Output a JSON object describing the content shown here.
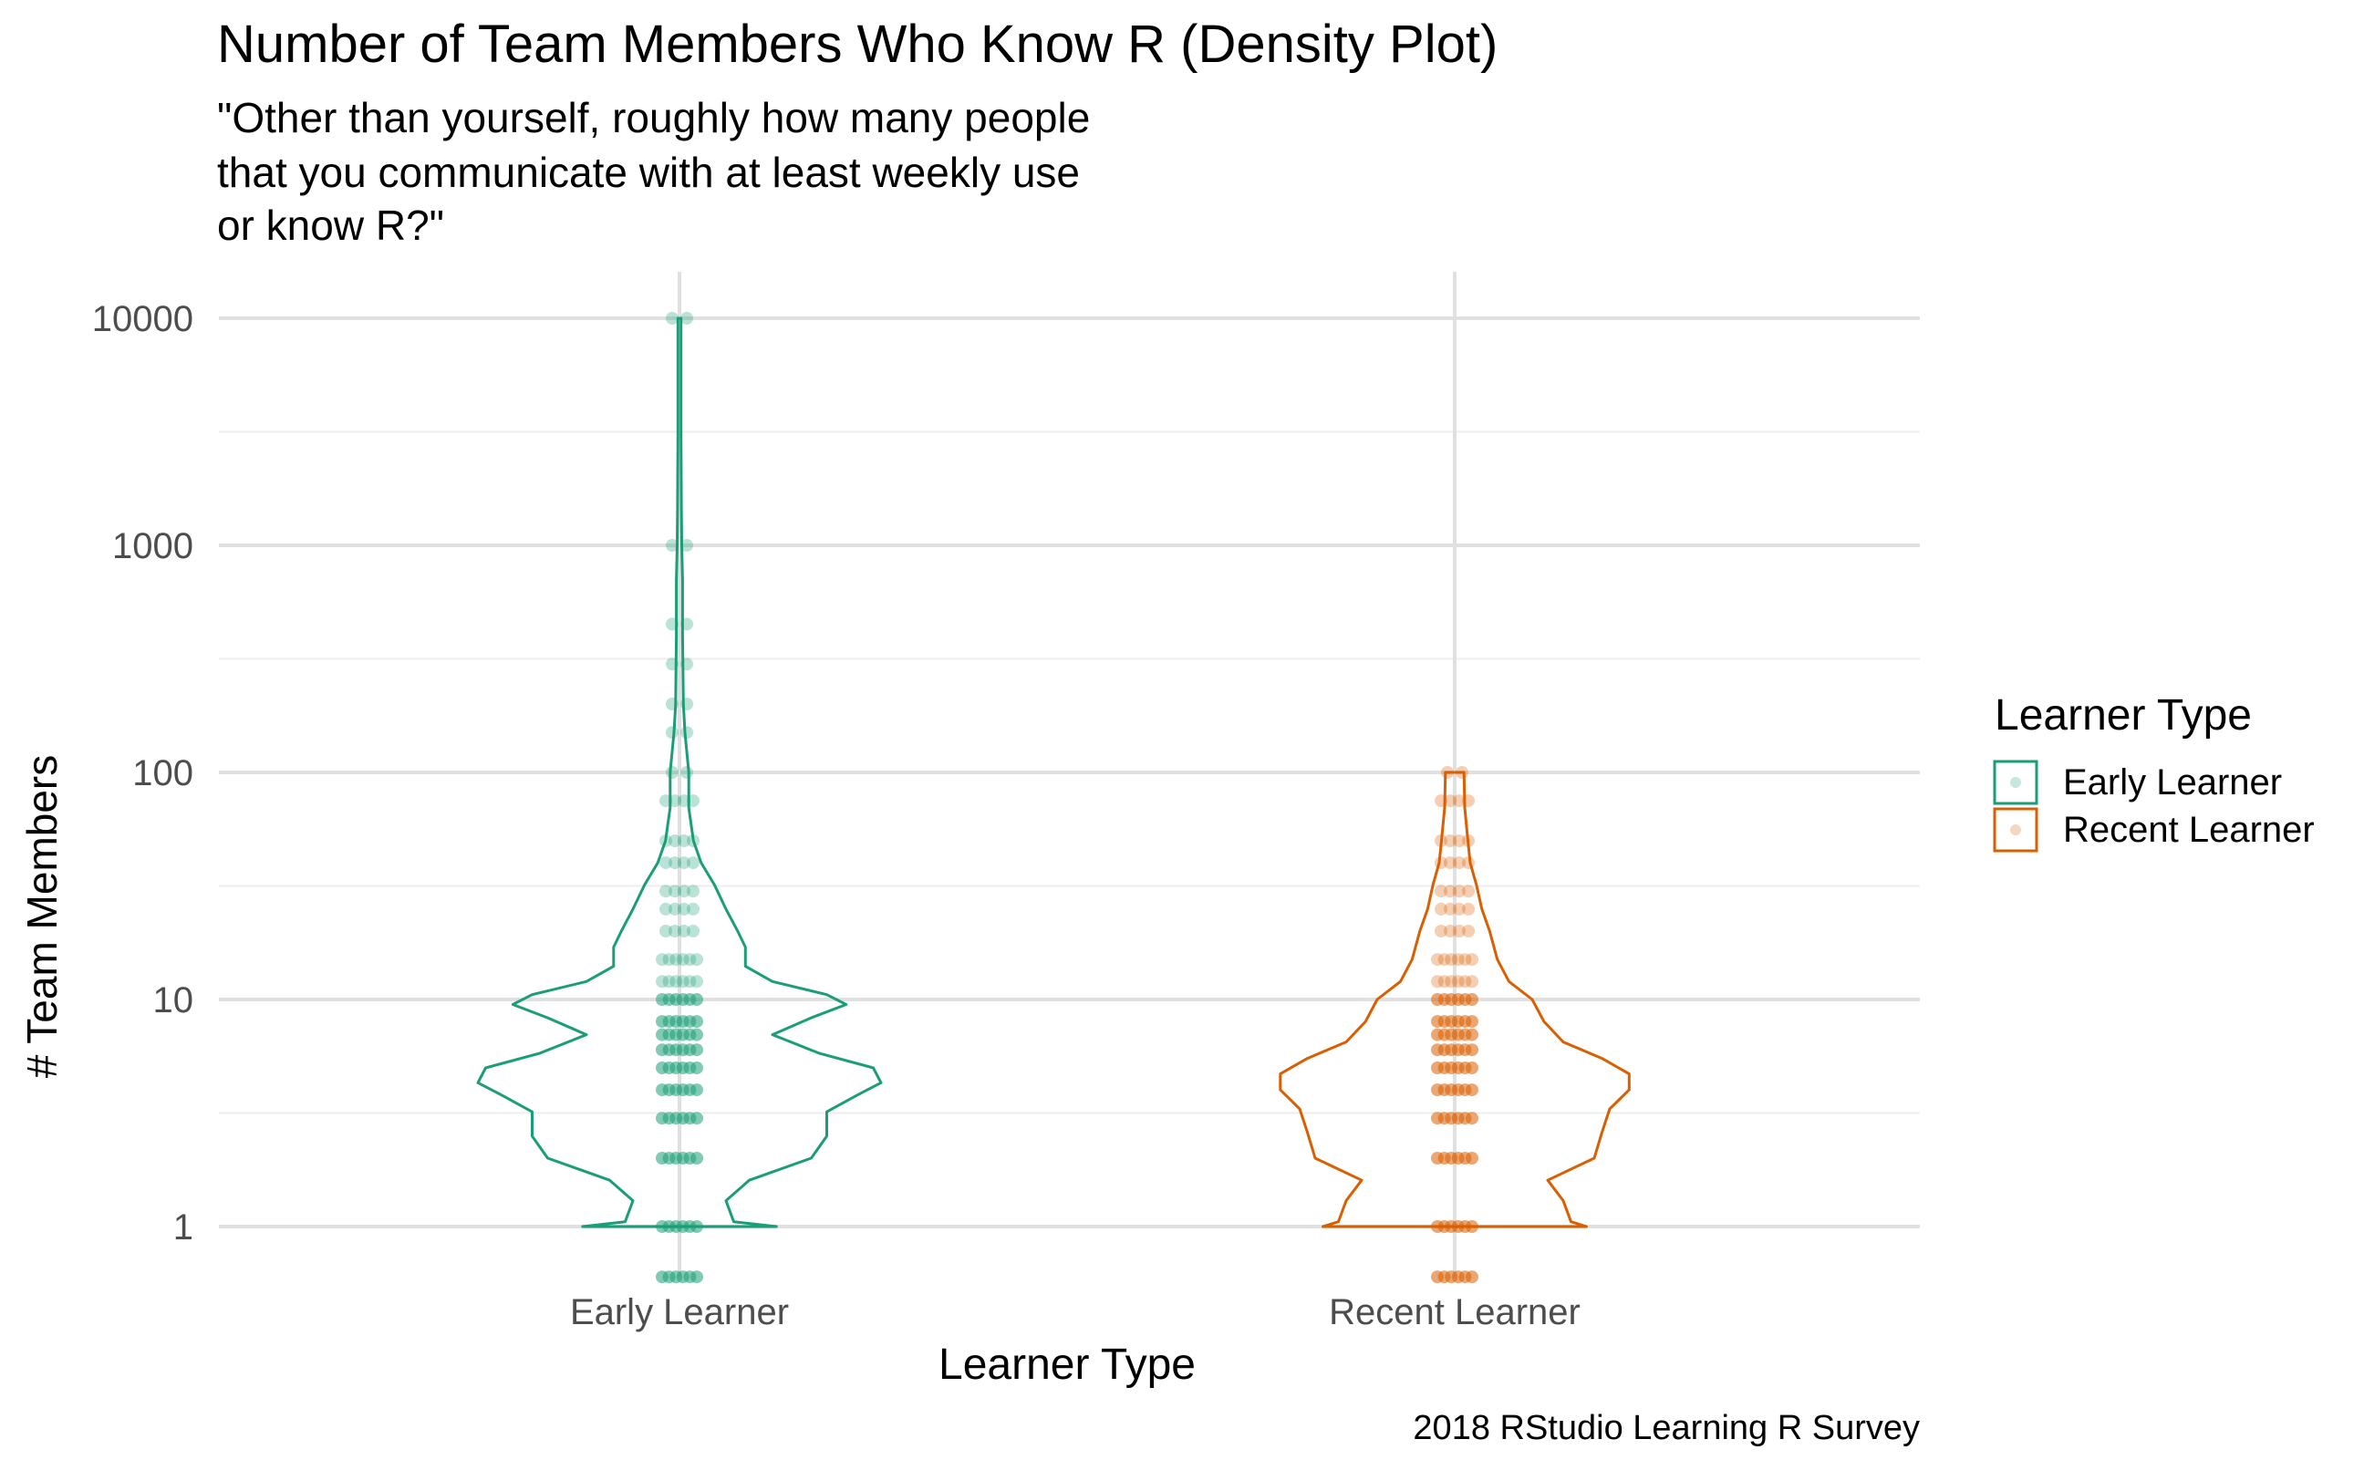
{
  "chart_data": {
    "type": "violin",
    "title": "Number of Team Members Who Know R (Density Plot)",
    "subtitle_lines": [
      "\"Other than yourself, roughly how many people",
      "that you communicate with at least weekly use",
      "or know R?\""
    ],
    "xlabel": "Learner Type",
    "ylabel": "# Team Members",
    "caption": "2018 RStudio Learning R Survey",
    "y_scale": "log10",
    "y_ticks": [
      {
        "value": 1,
        "label": "1"
      },
      {
        "value": 10,
        "label": "10"
      },
      {
        "value": 100,
        "label": "100"
      },
      {
        "value": 1000,
        "label": "1000"
      },
      {
        "value": 10000,
        "label": "10000"
      }
    ],
    "categories": [
      "Early Learner",
      "Recent Learner"
    ],
    "legend": {
      "title": "Learner Type",
      "placement": "right",
      "entries": [
        "Early Learner",
        "Recent Learner"
      ]
    },
    "series": [
      {
        "name": "Early Learner",
        "color": "#1B9E77",
        "point_values": [
          0.6,
          1,
          2,
          3,
          4,
          5,
          6,
          7,
          8,
          10,
          12,
          15,
          20,
          25,
          30,
          40,
          50,
          75,
          100,
          150,
          200,
          300,
          450,
          1000,
          10000
        ],
        "violin_profile": [
          {
            "y": 1,
            "half_width": 0.125
          },
          {
            "y": 1.05,
            "half_width": 0.07
          },
          {
            "y": 1.3,
            "half_width": 0.06
          },
          {
            "y": 1.6,
            "half_width": 0.09
          },
          {
            "y": 2.0,
            "half_width": 0.17
          },
          {
            "y": 2.5,
            "half_width": 0.19
          },
          {
            "y": 3.2,
            "half_width": 0.19
          },
          {
            "y": 3.8,
            "half_width": 0.23
          },
          {
            "y": 4.3,
            "half_width": 0.26
          },
          {
            "y": 5.0,
            "half_width": 0.25
          },
          {
            "y": 5.8,
            "half_width": 0.18
          },
          {
            "y": 7.0,
            "half_width": 0.12
          },
          {
            "y": 8.3,
            "half_width": 0.17
          },
          {
            "y": 9.5,
            "half_width": 0.215
          },
          {
            "y": 10.5,
            "half_width": 0.19
          },
          {
            "y": 12.0,
            "half_width": 0.12
          },
          {
            "y": 14.0,
            "half_width": 0.085
          },
          {
            "y": 17.0,
            "half_width": 0.085
          },
          {
            "y": 20.0,
            "half_width": 0.075
          },
          {
            "y": 25.0,
            "half_width": 0.06
          },
          {
            "y": 32.0,
            "half_width": 0.045
          },
          {
            "y": 40.0,
            "half_width": 0.028
          },
          {
            "y": 50.0,
            "half_width": 0.018
          },
          {
            "y": 70.0,
            "half_width": 0.012
          },
          {
            "y": 100.0,
            "half_width": 0.012
          },
          {
            "y": 150.0,
            "half_width": 0.007
          },
          {
            "y": 200.0,
            "half_width": 0.005
          },
          {
            "y": 400.0,
            "half_width": 0.004
          },
          {
            "y": 700.0,
            "half_width": 0.004
          },
          {
            "y": 1000.0,
            "half_width": 0.003
          },
          {
            "y": 1500.0,
            "half_width": 0.0025
          },
          {
            "y": 3000.0,
            "half_width": 0.002
          },
          {
            "y": 10000.0,
            "half_width": 0.002
          }
        ]
      },
      {
        "name": "Recent Learner",
        "color": "#D95F02",
        "point_values": [
          0.6,
          1,
          2,
          3,
          4,
          5,
          6,
          7,
          8,
          10,
          12,
          15,
          20,
          25,
          30,
          40,
          50,
          75,
          100
        ],
        "violin_profile": [
          {
            "y": 1,
            "half_width": 0.17
          },
          {
            "y": 1.05,
            "half_width": 0.15
          },
          {
            "y": 1.3,
            "half_width": 0.14
          },
          {
            "y": 1.6,
            "half_width": 0.12
          },
          {
            "y": 2.0,
            "half_width": 0.18
          },
          {
            "y": 2.6,
            "half_width": 0.19
          },
          {
            "y": 3.3,
            "half_width": 0.2
          },
          {
            "y": 4.0,
            "half_width": 0.225
          },
          {
            "y": 4.7,
            "half_width": 0.225
          },
          {
            "y": 5.5,
            "half_width": 0.19
          },
          {
            "y": 6.5,
            "half_width": 0.14
          },
          {
            "y": 8.0,
            "half_width": 0.115
          },
          {
            "y": 10.0,
            "half_width": 0.1
          },
          {
            "y": 12.0,
            "half_width": 0.07
          },
          {
            "y": 15.0,
            "half_width": 0.055
          },
          {
            "y": 20.0,
            "half_width": 0.045
          },
          {
            "y": 25.0,
            "half_width": 0.035
          },
          {
            "y": 32.0,
            "half_width": 0.028
          },
          {
            "y": 40.0,
            "half_width": 0.02
          },
          {
            "y": 50.0,
            "half_width": 0.017
          },
          {
            "y": 70.0,
            "half_width": 0.013
          },
          {
            "y": 100.0,
            "half_width": 0.012
          }
        ]
      }
    ]
  }
}
